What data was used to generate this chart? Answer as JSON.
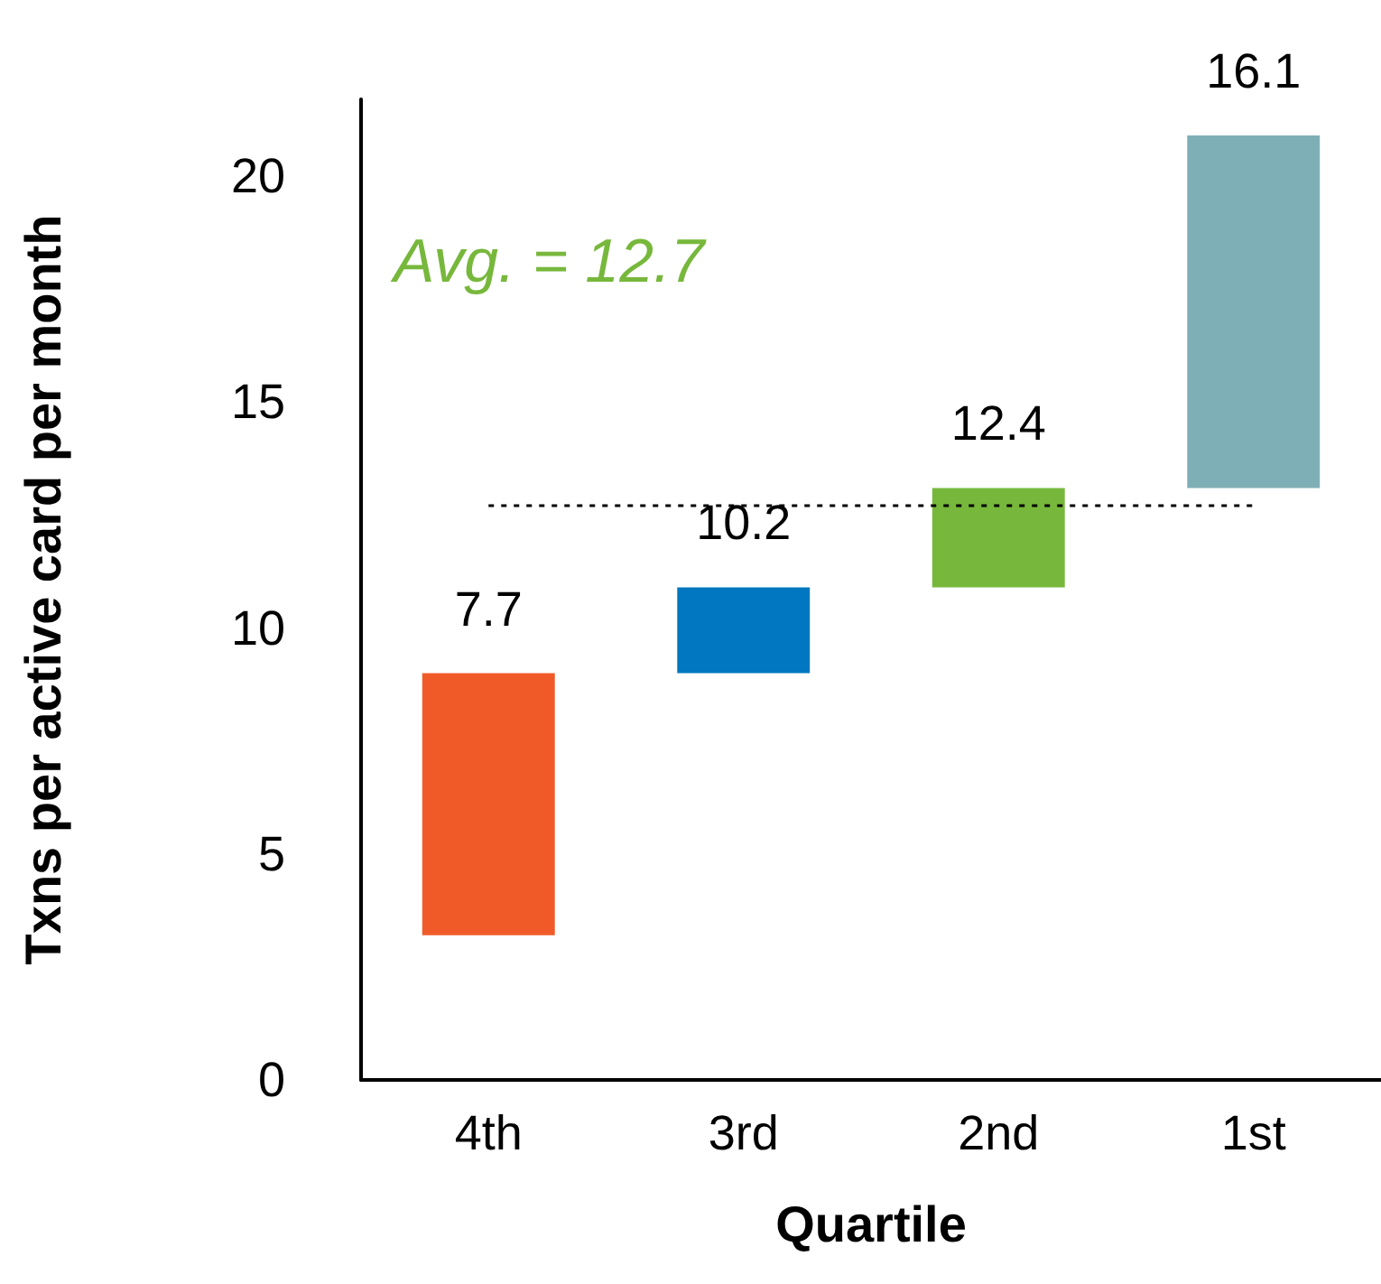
{
  "chart_data": {
    "type": "bar",
    "xlabel": "Quartile",
    "ylabel": "Txns per active card per month",
    "categories": [
      "4th",
      "3rd",
      "2nd",
      "1st"
    ],
    "values": [
      5.8,
      1.9,
      2.2,
      7.8
    ],
    "base": [
      3.2,
      9.0,
      10.9,
      13.1
    ],
    "colors": [
      "#f05a28",
      "#0077c0",
      "#77b83c",
      "#7fafb6"
    ],
    "ylim": [
      0,
      21.7
    ],
    "yticks": [
      0,
      5,
      10,
      15,
      20
    ],
    "grid": false,
    "annotations": [
      "Avg. = 12.7",
      {
        "text": "7.7",
        "x": "4th",
        "y": 9.0
      },
      {
        "text": "10.2",
        "x": "3rd",
        "y": 10.9
      },
      {
        "text": "12.4",
        "x": "2nd",
        "y": 13.1
      },
      {
        "text": "16.1",
        "x": "1st",
        "y": 20.9
      }
    ],
    "ref_lines": [
      {
        "axis": "y",
        "value": 12.7,
        "color": "#000000",
        "line_style": "dotted"
      }
    ]
  }
}
